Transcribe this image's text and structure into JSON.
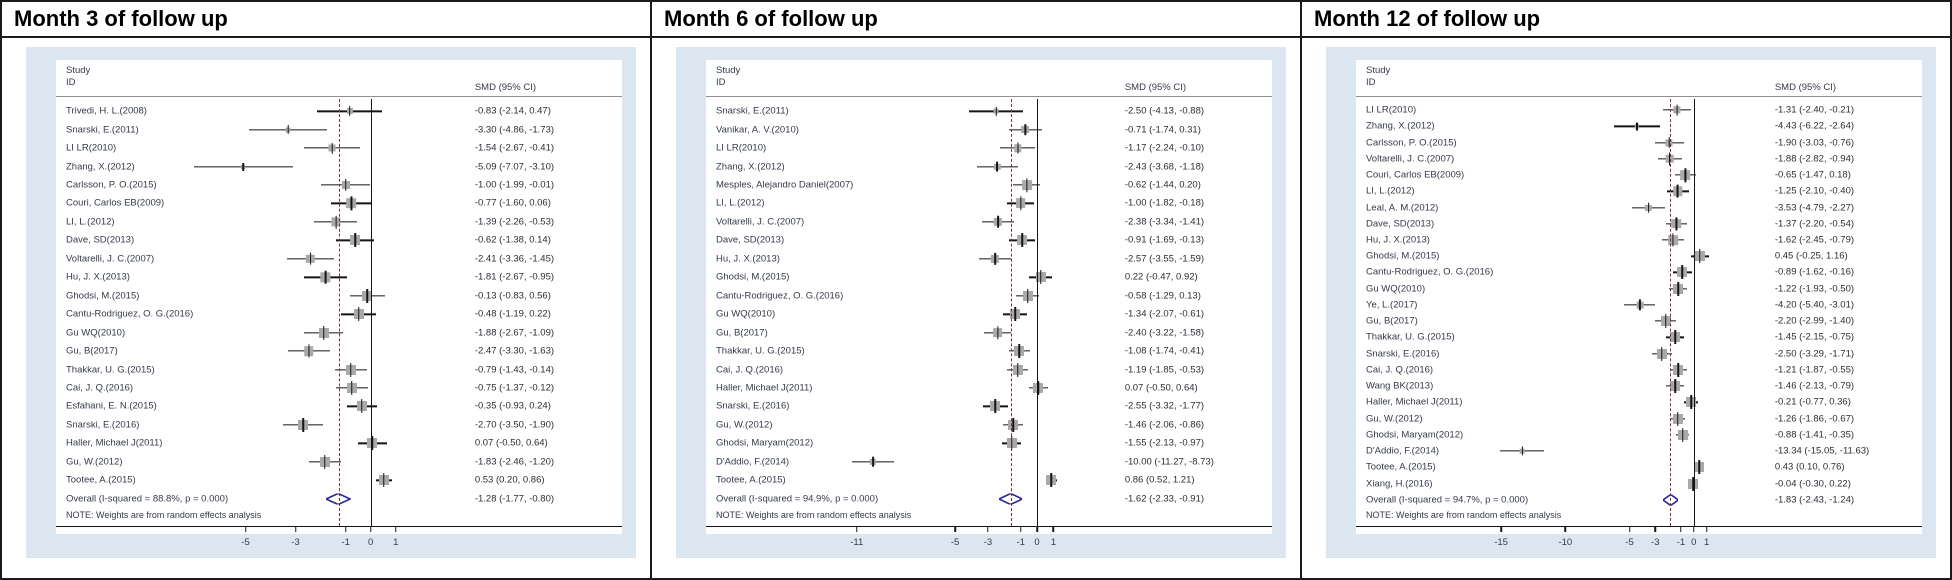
{
  "colors": {
    "panel_background": "#dce6f1",
    "no_effect_line": "#151515",
    "overall_dashed_line": "#7d3030",
    "diamond_outline": "#26268f",
    "marker_fill": "#a9a9a9",
    "text": "#343a49"
  },
  "chart_data": [
    {
      "type": "forest",
      "title": "Month 3 of follow up",
      "header": {
        "study_line1": "Study",
        "study_line2": "ID",
        "smd": "SMD (95% CI)"
      },
      "note": "NOTE: Weights are from random effects analysis",
      "xlim": [
        -7.6,
        1.9
      ],
      "axis_ticks": [
        -5,
        -3,
        -1,
        0,
        1
      ],
      "studies": [
        {
          "id": "Trivedi, H. L.(2008)",
          "smd": "-0.83 (-2.14, 0.47)",
          "est": -0.83,
          "lo": -2.14,
          "hi": 0.47
        },
        {
          "id": "Snarski, E.(2011)",
          "smd": "-3.30 (-4.86, -1.73)",
          "est": -3.3,
          "lo": -4.86,
          "hi": -1.73
        },
        {
          "id": "LI LR(2010)",
          "smd": "-1.54 (-2.67, -0.41)",
          "est": -1.54,
          "lo": -2.67,
          "hi": -0.41
        },
        {
          "id": "Zhang, X.(2012)",
          "smd": "-5.09 (-7.07, -3.10)",
          "est": -5.09,
          "lo": -7.07,
          "hi": -3.1
        },
        {
          "id": "Carlsson, P. O.(2015)",
          "smd": "-1.00 (-1.99, -0.01)",
          "est": -1.0,
          "lo": -1.99,
          "hi": -0.01
        },
        {
          "id": "Couri, Carlos EB(2009)",
          "smd": "-0.77 (-1.60, 0.06)",
          "est": -0.77,
          "lo": -1.6,
          "hi": 0.06
        },
        {
          "id": "LI, L.(2012)",
          "smd": "-1.39 (-2.26, -0.53)",
          "est": -1.39,
          "lo": -2.26,
          "hi": -0.53
        },
        {
          "id": "Dave, SD(2013)",
          "smd": "-0.62 (-1.38, 0.14)",
          "est": -0.62,
          "lo": -1.38,
          "hi": 0.14
        },
        {
          "id": "Voltarelli, J. C.(2007)",
          "smd": "-2.41 (-3.36, -1.45)",
          "est": -2.41,
          "lo": -3.36,
          "hi": -1.45
        },
        {
          "id": "Hu, J. X.(2013)",
          "smd": "-1.81 (-2.67, -0.95)",
          "est": -1.81,
          "lo": -2.67,
          "hi": -0.95
        },
        {
          "id": "Ghodsi, M.(2015)",
          "smd": "-0.13 (-0.83, 0.56)",
          "est": -0.13,
          "lo": -0.83,
          "hi": 0.56
        },
        {
          "id": "Cantu-Rodriguez, O. G.(2016)",
          "smd": "-0.48 (-1.19, 0.22)",
          "est": -0.48,
          "lo": -1.19,
          "hi": 0.22
        },
        {
          "id": "Gu WQ(2010)",
          "smd": "-1.88 (-2.67, -1.09)",
          "est": -1.88,
          "lo": -2.67,
          "hi": -1.09
        },
        {
          "id": "Gu, B(2017)",
          "smd": "-2.47 (-3.30, -1.63)",
          "est": -2.47,
          "lo": -3.3,
          "hi": -1.63
        },
        {
          "id": "Thakkar, U. G.(2015)",
          "smd": "-0.79 (-1.43, -0.14)",
          "est": -0.79,
          "lo": -1.43,
          "hi": -0.14
        },
        {
          "id": "Cai, J. Q.(2016)",
          "smd": "-0.75 (-1.37, -0.12)",
          "est": -0.75,
          "lo": -1.37,
          "hi": -0.12
        },
        {
          "id": "Esfahani, E. N.(2015)",
          "smd": "-0.35 (-0.93, 0.24)",
          "est": -0.35,
          "lo": -0.93,
          "hi": 0.24
        },
        {
          "id": "Snarski, E.(2016)",
          "smd": "-2.70 (-3.50, -1.90)",
          "est": -2.7,
          "lo": -3.5,
          "hi": -1.9
        },
        {
          "id": "Haller, Michael J(2011)",
          "smd": "0.07 (-0.50, 0.64)",
          "est": 0.07,
          "lo": -0.5,
          "hi": 0.64
        },
        {
          "id": "Gu, W.(2012)",
          "smd": "-1.83 (-2.46, -1.20)",
          "est": -1.83,
          "lo": -2.46,
          "hi": -1.2
        },
        {
          "id": "Tootee, A.(2015)",
          "smd": "0.53 (0.20, 0.86)",
          "est": 0.53,
          "lo": 0.2,
          "hi": 0.86
        }
      ],
      "overall": {
        "label": "Overall  (I-squared = 88.8%, p = 0.000)",
        "smd": "-1.28 (-1.77, -0.80)",
        "est": -1.28,
        "lo": -1.77,
        "hi": -0.8
      }
    },
    {
      "type": "forest",
      "title": "Month 6 of follow up",
      "header": {
        "study_line1": "Study",
        "study_line2": "ID",
        "smd": "SMD (95% CI)"
      },
      "note": "NOTE: Weights are from random effects analysis",
      "xlim": [
        -12.6,
        1.9
      ],
      "axis_ticks": [
        -11,
        -5,
        -3,
        -1,
        0,
        1
      ],
      "studies": [
        {
          "id": "Snarski, E.(2011)",
          "smd": "-2.50 (-4.13, -0.88)",
          "est": -2.5,
          "lo": -4.13,
          "hi": -0.88
        },
        {
          "id": "Vanikar, A. V.(2010)",
          "smd": "-0.71 (-1.74, 0.31)",
          "est": -0.71,
          "lo": -1.74,
          "hi": 0.31
        },
        {
          "id": "LI LR(2010)",
          "smd": "-1.17 (-2.24, -0.10)",
          "est": -1.17,
          "lo": -2.24,
          "hi": -0.1
        },
        {
          "id": "Zhang, X.(2012)",
          "smd": "-2.43 (-3.68, -1.18)",
          "est": -2.43,
          "lo": -3.68,
          "hi": -1.18
        },
        {
          "id": "Mesples, Alejandro Daniel(2007)",
          "smd": "-0.62 (-1.44, 0.20)",
          "est": -0.62,
          "lo": -1.44,
          "hi": 0.2
        },
        {
          "id": "LI, L.(2012)",
          "smd": "-1.00 (-1.82, -0.18)",
          "est": -1.0,
          "lo": -1.82,
          "hi": -0.18
        },
        {
          "id": "Voltarelli, J. C.(2007)",
          "smd": "-2.38 (-3.34, -1.41)",
          "est": -2.38,
          "lo": -3.34,
          "hi": -1.41
        },
        {
          "id": "Dave, SD(2013)",
          "smd": "-0.91 (-1.69, -0.13)",
          "est": -0.91,
          "lo": -1.69,
          "hi": -0.13
        },
        {
          "id": "Hu, J. X.(2013)",
          "smd": "-2.57 (-3.55, -1.59)",
          "est": -2.57,
          "lo": -3.55,
          "hi": -1.59
        },
        {
          "id": "Ghodsi, M.(2015)",
          "smd": "0.22 (-0.47, 0.92)",
          "est": 0.22,
          "lo": -0.47,
          "hi": 0.92
        },
        {
          "id": "Cantu-Rodriguez, O. G.(2016)",
          "smd": "-0.58 (-1.29, 0.13)",
          "est": -0.58,
          "lo": -1.29,
          "hi": 0.13
        },
        {
          "id": "Gu WQ(2010)",
          "smd": "-1.34 (-2.07, -0.61)",
          "est": -1.34,
          "lo": -2.07,
          "hi": -0.61
        },
        {
          "id": "Gu, B(2017)",
          "smd": "-2.40 (-3.22, -1.58)",
          "est": -2.4,
          "lo": -3.22,
          "hi": -1.58
        },
        {
          "id": "Thakkar, U. G.(2015)",
          "smd": "-1.08 (-1.74, -0.41)",
          "est": -1.08,
          "lo": -1.74,
          "hi": -0.41
        },
        {
          "id": "Cai, J. Q.(2016)",
          "smd": "-1.19 (-1.85, -0.53)",
          "est": -1.19,
          "lo": -1.85,
          "hi": -0.53
        },
        {
          "id": "Haller, Michael J(2011)",
          "smd": "0.07 (-0.50, 0.64)",
          "est": 0.07,
          "lo": -0.5,
          "hi": 0.64
        },
        {
          "id": "Snarski, E.(2016)",
          "smd": "-2.55 (-3.32, -1.77)",
          "est": -2.55,
          "lo": -3.32,
          "hi": -1.77
        },
        {
          "id": "Gu, W.(2012)",
          "smd": "-1.46 (-2.06, -0.86)",
          "est": -1.46,
          "lo": -2.06,
          "hi": -0.86
        },
        {
          "id": "Ghodsi, Maryam(2012)",
          "smd": "-1.55 (-2.13, -0.97)",
          "est": -1.55,
          "lo": -2.13,
          "hi": -0.97
        },
        {
          "id": "D'Addio, F.(2014)",
          "smd": "-10.00 (-11.27, -8.73)",
          "est": -10.0,
          "lo": -11.27,
          "hi": -8.73
        },
        {
          "id": "Tootee, A.(2015)",
          "smd": "0.86 (0.52, 1.21)",
          "est": 0.86,
          "lo": 0.52,
          "hi": 1.21
        }
      ],
      "overall": {
        "label": "Overall  (I-squared = 94.9%, p = 0.000)",
        "smd": "-1.62 (-2.33, -0.91)",
        "est": -1.62,
        "lo": -2.33,
        "hi": -0.91
      }
    },
    {
      "type": "forest",
      "title": "Month 12 of follow up",
      "header": {
        "study_line1": "Study",
        "study_line2": "ID",
        "smd": "SMD (95% CI)"
      },
      "note": "NOTE: Weights are from random effects analysis",
      "xlim": [
        -16.6,
        1.9
      ],
      "axis_ticks": [
        -15,
        -10,
        -5,
        -3,
        -1,
        0,
        1
      ],
      "studies": [
        {
          "id": "LI LR(2010)",
          "smd": "-1.31 (-2.40, -0.21)",
          "est": -1.31,
          "lo": -2.4,
          "hi": -0.21
        },
        {
          "id": "Zhang, X.(2012)",
          "smd": "-4.43 (-6.22, -2.64)",
          "est": -4.43,
          "lo": -6.22,
          "hi": -2.64
        },
        {
          "id": "Carlsson, P. O.(2015)",
          "smd": "-1.90 (-3.03, -0.76)",
          "est": -1.9,
          "lo": -3.03,
          "hi": -0.76
        },
        {
          "id": "Voltarelli, J. C.(2007)",
          "smd": "-1.88 (-2.82, -0.94)",
          "est": -1.88,
          "lo": -2.82,
          "hi": -0.94
        },
        {
          "id": "Couri, Carlos EB(2009)",
          "smd": "-0.65 (-1.47, 0.18)",
          "est": -0.65,
          "lo": -1.47,
          "hi": 0.18
        },
        {
          "id": "LI, L.(2012)",
          "smd": "-1.25 (-2.10, -0.40)",
          "est": -1.25,
          "lo": -2.1,
          "hi": -0.4
        },
        {
          "id": "Leal, A. M.(2012)",
          "smd": "-3.53 (-4.79, -2.27)",
          "est": -3.53,
          "lo": -4.79,
          "hi": -2.27
        },
        {
          "id": "Dave, SD(2013)",
          "smd": "-1.37 (-2.20, -0.54)",
          "est": -1.37,
          "lo": -2.2,
          "hi": -0.54
        },
        {
          "id": "Hu, J. X.(2013)",
          "smd": "-1.62 (-2.45, -0.79)",
          "est": -1.62,
          "lo": -2.45,
          "hi": -0.79
        },
        {
          "id": "Ghodsi, M.(2015)",
          "smd": "0.45 (-0.25, 1.16)",
          "est": 0.45,
          "lo": -0.25,
          "hi": 1.16
        },
        {
          "id": "Cantu-Rodriguez, O. G.(2016)",
          "smd": "-0.89 (-1.62, -0.16)",
          "est": -0.89,
          "lo": -1.62,
          "hi": -0.16
        },
        {
          "id": "Gu WQ(2010)",
          "smd": "-1.22 (-1.93, -0.50)",
          "est": -1.22,
          "lo": -1.93,
          "hi": -0.5
        },
        {
          "id": "Ye, L.(2017)",
          "smd": "-4.20 (-5.40, -3.01)",
          "est": -4.2,
          "lo": -5.4,
          "hi": -3.01
        },
        {
          "id": "Gu, B(2017)",
          "smd": "-2.20 (-2.99, -1.40)",
          "est": -2.2,
          "lo": -2.99,
          "hi": -1.4
        },
        {
          "id": "Thakkar, U. G.(2015)",
          "smd": "-1.45 (-2.15, -0.75)",
          "est": -1.45,
          "lo": -2.15,
          "hi": -0.75
        },
        {
          "id": "Snarski, E.(2016)",
          "smd": "-2.50 (-3.29, -1.71)",
          "est": -2.5,
          "lo": -3.29,
          "hi": -1.71
        },
        {
          "id": "Cai, J. Q.(2016)",
          "smd": "-1.21 (-1.87, -0.55)",
          "est": -1.21,
          "lo": -1.87,
          "hi": -0.55
        },
        {
          "id": "Wang BK(2013)",
          "smd": "-1.46 (-2.13, -0.79)",
          "est": -1.46,
          "lo": -2.13,
          "hi": -0.79
        },
        {
          "id": "Haller, Michael J(2011)",
          "smd": "-0.21 (-0.77, 0.36)",
          "est": -0.21,
          "lo": -0.77,
          "hi": 0.36
        },
        {
          "id": "Gu, W.(2012)",
          "smd": "-1.26 (-1.86, -0.67)",
          "est": -1.26,
          "lo": -1.86,
          "hi": -0.67
        },
        {
          "id": "Ghodsi, Maryam(2012)",
          "smd": "-0.88 (-1.41, -0.35)",
          "est": -0.88,
          "lo": -1.41,
          "hi": -0.35
        },
        {
          "id": "D'Addio, F.(2014)",
          "smd": "-13.34 (-15.05, -11.63)",
          "est": -13.34,
          "lo": -15.05,
          "hi": -11.63
        },
        {
          "id": "Tootee, A.(2015)",
          "smd": "0.43 (0.10, 0.76)",
          "est": 0.43,
          "lo": 0.1,
          "hi": 0.76
        },
        {
          "id": "Xiang, H.(2016)",
          "smd": "-0.04 (-0.30, 0.22)",
          "est": -0.04,
          "lo": -0.3,
          "hi": 0.22
        }
      ],
      "overall": {
        "label": "Overall  (I-squared = 94.7%, p = 0.000)",
        "smd": "-1.83 (-2.43, -1.24)",
        "est": -1.83,
        "lo": -2.43,
        "hi": -1.24
      }
    }
  ]
}
